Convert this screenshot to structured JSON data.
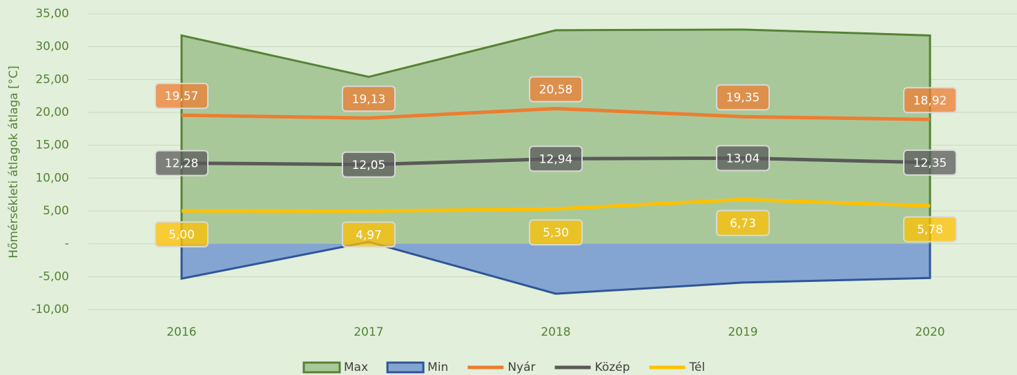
{
  "chart_data": {
    "type": "combo",
    "y_label": "Hőmérsékleti átlagok átlaga [°C]",
    "categories": [
      "2016",
      "2017",
      "2018",
      "2019",
      "2020"
    ],
    "series": [
      {
        "name": "Max",
        "type": "area",
        "color": "#a9c89a",
        "border": "#548235",
        "values": [
          31.7,
          25.4,
          32.5,
          32.6,
          31.7
        ]
      },
      {
        "name": "Min",
        "type": "area",
        "color": "#84a4d2",
        "border": "#2f5597",
        "values": [
          -5.3,
          0.3,
          -7.6,
          -5.9,
          -5.2
        ]
      },
      {
        "name": "Nyár",
        "type": "line",
        "color": "#ed7d31",
        "values": [
          19.57,
          19.13,
          20.58,
          19.35,
          18.92
        ],
        "value_labels": [
          "19,57",
          "19,13",
          "20,58",
          "19,35",
          "18,92"
        ]
      },
      {
        "name": "Közép",
        "type": "line",
        "color": "#595959",
        "values": [
          12.28,
          12.05,
          12.94,
          13.04,
          12.35
        ],
        "value_labels": [
          "12,28",
          "12,05",
          "12,94",
          "13,04",
          "12,35"
        ]
      },
      {
        "name": "Tél",
        "type": "line",
        "color": "#ffc000",
        "values": [
          5.0,
          4.97,
          5.3,
          6.73,
          5.78
        ],
        "value_labels": [
          "5,00",
          "4,97",
          "5,30",
          "6,73",
          "5,78"
        ]
      }
    ],
    "ylim": [
      -10,
      35
    ],
    "yticks": [
      {
        "value": -10,
        "label": "-10,00"
      },
      {
        "value": -5,
        "label": "-5,00"
      },
      {
        "value": 0,
        "label": "-"
      },
      {
        "value": 5,
        "label": "5,00"
      },
      {
        "value": 10,
        "label": "10,00"
      },
      {
        "value": 15,
        "label": "15,00"
      },
      {
        "value": 20,
        "label": "20,00"
      },
      {
        "value": 25,
        "label": "25,00"
      },
      {
        "value": 30,
        "label": "30,00"
      },
      {
        "value": 35,
        "label": "35,00"
      }
    ],
    "grid": true,
    "legend": "bottom"
  }
}
